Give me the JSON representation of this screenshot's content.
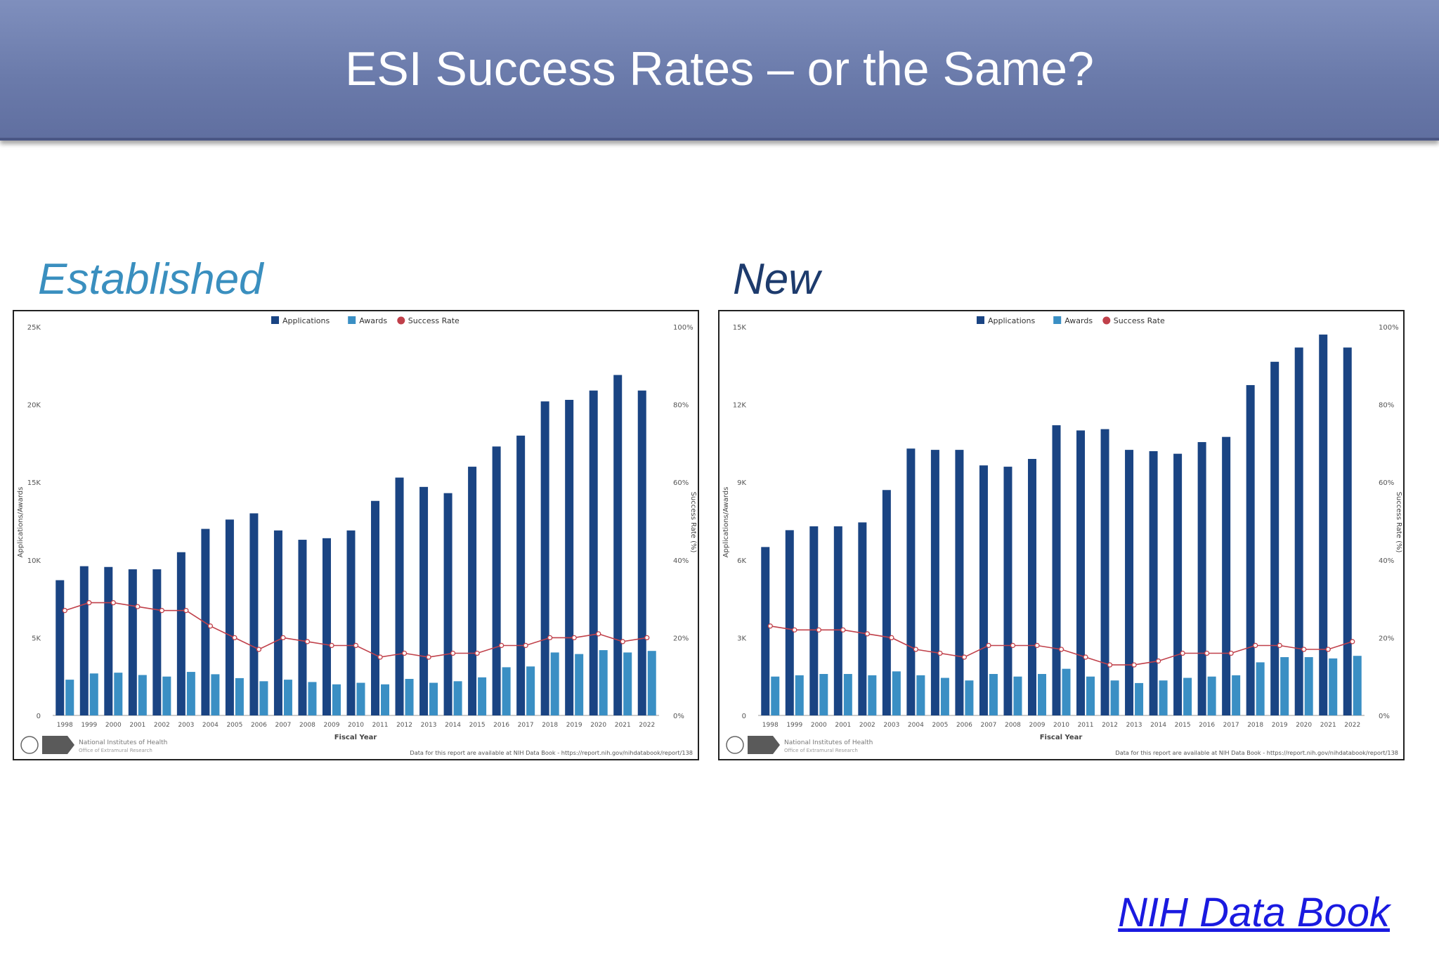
{
  "slide": {
    "title": "ESI Success Rates – or the Same?",
    "source_link": "NIH Data Book"
  },
  "colors": {
    "title_bar": "#6b7bab",
    "applications": "#1a4483",
    "awards": "#3a8fc4",
    "success_rate": "#c0404a",
    "established_label": "#3a8fbf",
    "new_label": "#1d3b6d"
  },
  "chart_data": [
    {
      "type": "bar",
      "panel_label": "Established",
      "legend": [
        "Applications",
        "Awards",
        "Success Rate"
      ],
      "legend_placement": "top-center",
      "categories": [
        "1998",
        "1999",
        "2000",
        "2001",
        "2002",
        "2003",
        "2004",
        "2005",
        "2006",
        "2007",
        "2008",
        "2009",
        "2010",
        "2011",
        "2012",
        "2013",
        "2014",
        "2015",
        "2016",
        "2017",
        "2018",
        "2019",
        "2020",
        "2021",
        "2022"
      ],
      "series": [
        {
          "name": "Applications",
          "axis": "left",
          "values": [
            8700,
            9600,
            9550,
            9400,
            9400,
            10500,
            12000,
            12600,
            13000,
            11900,
            11300,
            11400,
            11900,
            13800,
            15300,
            14700,
            14300,
            16000,
            17300,
            18000,
            20200,
            20300,
            20900,
            21900,
            20900
          ]
        },
        {
          "name": "Awards",
          "axis": "left",
          "values": [
            2300,
            2700,
            2750,
            2600,
            2500,
            2800,
            2650,
            2400,
            2200,
            2300,
            2150,
            2000,
            2100,
            2000,
            2350,
            2100,
            2200,
            2450,
            3100,
            3150,
            4050,
            3950,
            4200,
            4050,
            4150
          ]
        },
        {
          "name": "Success Rate",
          "axis": "right",
          "type": "line",
          "values": [
            27,
            29,
            29,
            28,
            27,
            27,
            23,
            20,
            17,
            20,
            19,
            18,
            18,
            15,
            16,
            15,
            16,
            16,
            18,
            18,
            20,
            20,
            21,
            19,
            20
          ]
        }
      ],
      "ylabel_left": "Applications/Awards",
      "ylabel_right": "Success Rate (%)",
      "xlabel": "Fiscal Year",
      "ylim_left": [
        0,
        25000
      ],
      "yticks_left": [
        "0",
        "5K",
        "10K",
        "15K",
        "20K",
        "25K"
      ],
      "ylim_right": [
        0,
        100
      ],
      "yticks_right": [
        "0%",
        "20%",
        "40%",
        "60%",
        "80%",
        "100%"
      ],
      "grid": false,
      "footer_org": "National Institutes of Health",
      "footer_office": "Office of Extramural Research",
      "footer_source": "Data for this report are available at NIH Data Book - https://report.nih.gov/nihdatabook/report/138"
    },
    {
      "type": "bar",
      "panel_label": "New",
      "legend": [
        "Applications",
        "Awards",
        "Success Rate"
      ],
      "legend_placement": "top-center",
      "categories": [
        "1998",
        "1999",
        "2000",
        "2001",
        "2002",
        "2003",
        "2004",
        "2005",
        "2006",
        "2007",
        "2008",
        "2009",
        "2010",
        "2011",
        "2012",
        "2013",
        "2014",
        "2015",
        "2016",
        "2017",
        "2018",
        "2019",
        "2020",
        "2021",
        "2022"
      ],
      "series": [
        {
          "name": "Applications",
          "axis": "left",
          "values": [
            6500,
            7150,
            7300,
            7300,
            7450,
            8700,
            10300,
            10250,
            10250,
            9650,
            9600,
            9900,
            11200,
            11000,
            11050,
            10250,
            10200,
            10100,
            10550,
            10750,
            12750,
            13650,
            14200,
            14700,
            14200
          ]
        },
        {
          "name": "Awards",
          "axis": "left",
          "values": [
            1500,
            1550,
            1600,
            1600,
            1550,
            1700,
            1550,
            1450,
            1350,
            1600,
            1500,
            1600,
            1800,
            1500,
            1350,
            1250,
            1350,
            1450,
            1500,
            1550,
            2050,
            2250,
            2250,
            2200,
            2300
          ]
        },
        {
          "name": "Success Rate",
          "axis": "right",
          "type": "line",
          "values": [
            23,
            22,
            22,
            22,
            21,
            20,
            17,
            16,
            15,
            18,
            18,
            18,
            17,
            15,
            13,
            13,
            14,
            16,
            16,
            16,
            18,
            18,
            17,
            17,
            19
          ]
        }
      ],
      "ylabel_left": "Applications/Awards",
      "ylabel_right": "Success Rate (%)",
      "xlabel": "Fiscal Year",
      "ylim_left": [
        0,
        15000
      ],
      "yticks_left": [
        "0",
        "3K",
        "6K",
        "9K",
        "12K",
        "15K"
      ],
      "ylim_right": [
        0,
        100
      ],
      "yticks_right": [
        "0%",
        "20%",
        "40%",
        "60%",
        "80%",
        "100%"
      ],
      "grid": false,
      "footer_org": "National Institutes of Health",
      "footer_office": "Office of Extramural Research",
      "footer_source": "Data for this report are available at NIH Data Book - https://report.nih.gov/nihdatabook/report/138"
    }
  ]
}
